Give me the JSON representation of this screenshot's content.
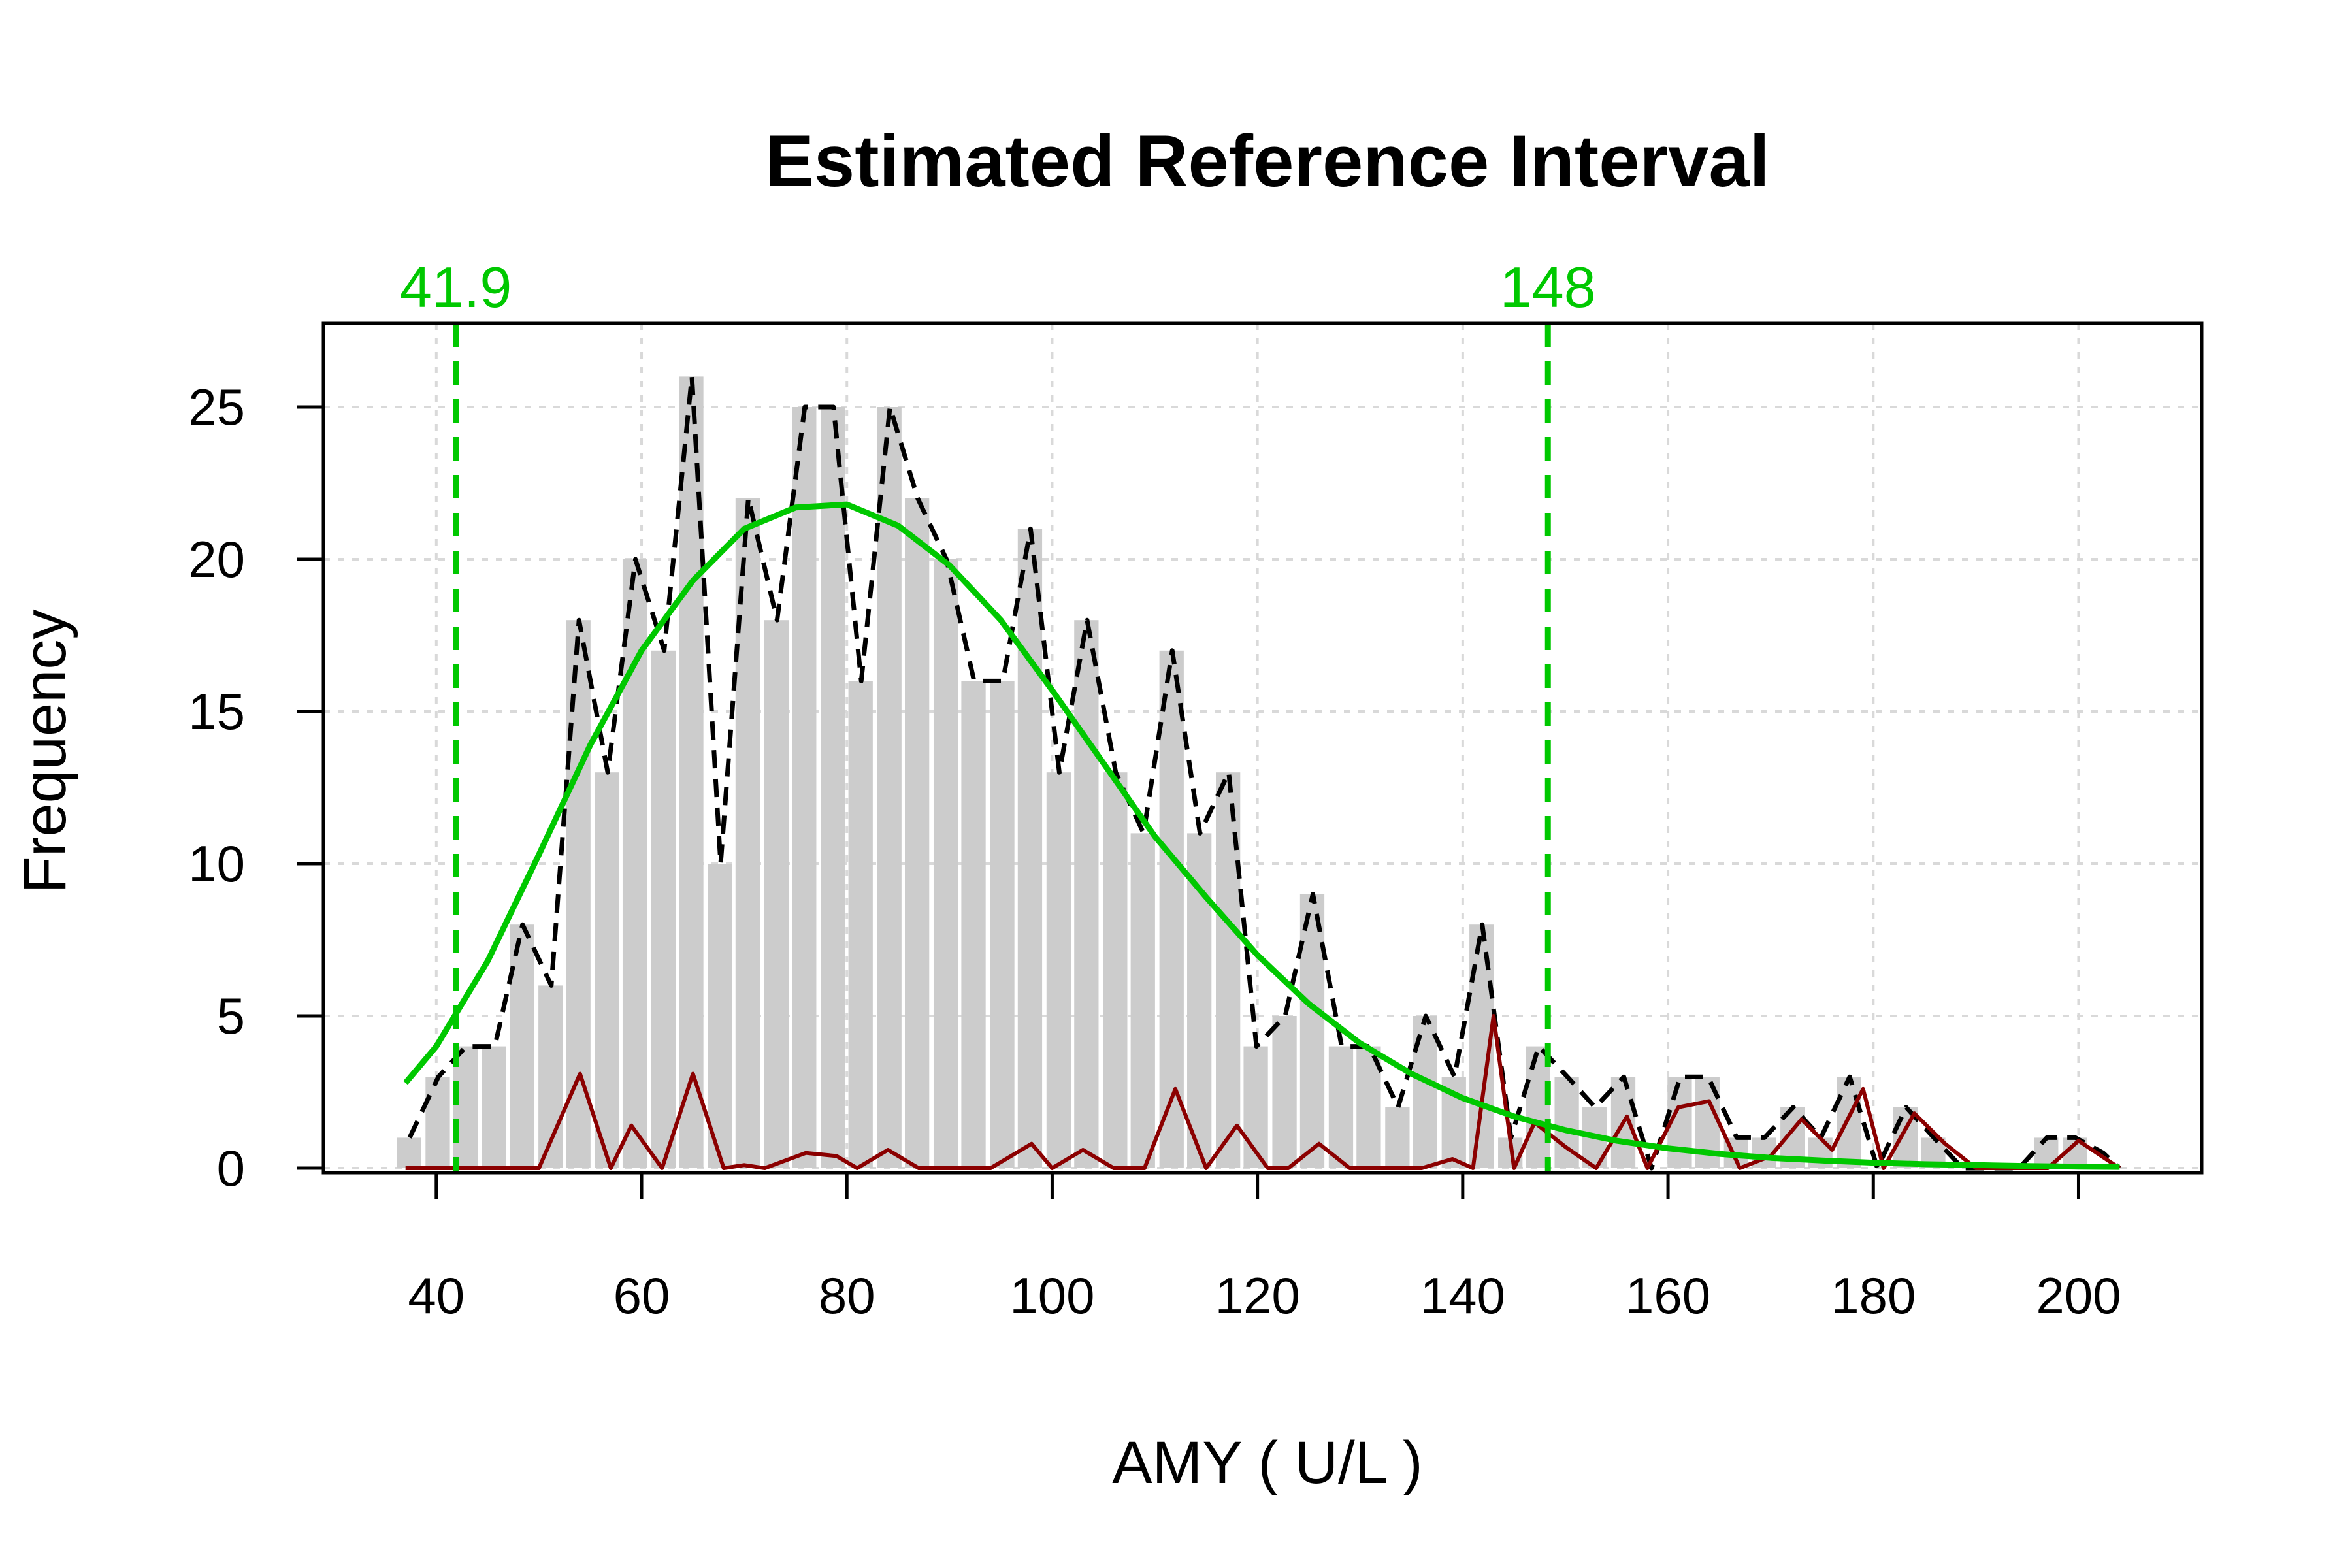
{
  "chart_data": {
    "type": "bar",
    "title": "Estimated Reference Interval",
    "xlabel": "AMY ( U/L )",
    "ylabel": "Frequency",
    "xlim": [
      29,
      212
    ],
    "ylim": [
      0,
      27.5
    ],
    "x_ticks": [
      40,
      60,
      80,
      100,
      120,
      140,
      160,
      180,
      200
    ],
    "y_ticks": [
      0,
      5,
      10,
      15,
      20,
      25
    ],
    "grid": true,
    "bin_width": 2.5,
    "bars": {
      "x": [
        37.4,
        40.2,
        42.9,
        45.7,
        48.4,
        51.2,
        53.9,
        56.7,
        59.4,
        62.2,
        64.9,
        67.7,
        70.4,
        73.2,
        75.9,
        78.7,
        81.4,
        84.2,
        86.9,
        89.7,
        92.4,
        95.2,
        97.9,
        100.7,
        103.4,
        106.2,
        108.9,
        111.7,
        114.4,
        117.2,
        119.9,
        122.7,
        125.4,
        128.2,
        130.9,
        133.7,
        136.4,
        139.2,
        141.9,
        144.7,
        147.4,
        150.2,
        152.9,
        155.7,
        158.4,
        161.2,
        163.9,
        166.7,
        169.4,
        172.2,
        174.9,
        177.7,
        180.4,
        183.2,
        185.9,
        188.7,
        191.4,
        194.2,
        196.9,
        199.7,
        202.4
      ],
      "values": [
        1,
        3,
        4,
        4,
        8,
        6,
        18,
        13,
        20,
        17,
        26,
        10,
        22,
        18,
        25,
        25,
        16,
        25,
        22,
        20,
        16,
        16,
        21,
        13,
        18,
        13,
        11,
        17,
        11,
        13,
        4,
        5,
        9,
        4,
        4,
        2,
        5,
        3,
        8,
        1,
        4,
        3,
        2,
        3,
        0,
        3,
        3,
        1,
        1,
        2,
        1,
        3,
        0,
        2,
        1,
        0,
        0,
        0,
        1,
        1,
        0
      ]
    },
    "series": [
      {
        "style": "black-dashed",
        "x": [
          37.4,
          40.2,
          42.9,
          45.7,
          48.4,
          51.2,
          53.9,
          56.7,
          59.4,
          62.2,
          64.9,
          67.7,
          70.4,
          73.2,
          75.9,
          78.7,
          81.4,
          84.2,
          86.9,
          89.7,
          92.4,
          95.2,
          97.9,
          100.7,
          103.4,
          106.2,
          108.9,
          111.7,
          114.4,
          117.2,
          119.9,
          122.7,
          125.4,
          128.2,
          130.9,
          133.7,
          136.4,
          139.2,
          141.9,
          144.7,
          147.4,
          150.2,
          152.9,
          155.7,
          158.4,
          161.2,
          163.9,
          166.7,
          169.4,
          172.2,
          174.9,
          177.7,
          180.4,
          183.2,
          185.9,
          188.7,
          191.4,
          194.2,
          196.9,
          199.7,
          202.4,
          204.0
        ],
        "values": [
          1,
          3,
          4,
          4,
          8,
          6,
          18,
          13,
          20,
          17,
          26,
          10,
          22,
          18,
          25,
          25,
          16,
          25,
          22,
          20,
          16,
          16,
          21,
          13,
          18,
          13,
          11,
          17,
          11,
          13,
          4,
          5,
          9,
          4,
          4,
          2,
          5,
          3,
          8,
          1,
          4,
          3,
          2,
          3,
          0,
          3,
          3,
          1,
          1,
          2,
          1,
          3,
          0,
          2,
          1,
          0,
          0,
          0,
          1,
          1,
          0.5,
          0
        ]
      },
      {
        "style": "darkred-solid",
        "x": [
          37,
          42,
          46,
          50,
          54,
          57,
          59,
          62,
          65,
          68,
          70,
          72,
          76,
          79,
          81,
          84,
          87,
          90,
          94,
          98,
          100,
          103,
          106,
          109,
          112,
          115,
          118,
          121,
          123,
          126,
          129,
          133,
          136,
          139,
          141,
          143,
          145,
          147,
          150,
          153,
          156,
          158,
          161,
          164,
          167,
          170,
          173,
          176,
          179,
          181,
          184,
          187,
          190,
          193,
          197,
          200,
          204
        ],
        "values": [
          0,
          0,
          0,
          0,
          3.1,
          0,
          1.4,
          0,
          3.1,
          0,
          0.1,
          0,
          0.5,
          0.4,
          0,
          0.6,
          0,
          0,
          0,
          0.8,
          0,
          0.6,
          0,
          0,
          2.6,
          0,
          1.4,
          0,
          0,
          0.8,
          0,
          0,
          0,
          0.3,
          0,
          5,
          0,
          1.5,
          0.7,
          0,
          1.7,
          0,
          2,
          2.2,
          0,
          0.4,
          1.6,
          0.6,
          2.6,
          0,
          1.8,
          0.8,
          0,
          0,
          0,
          0.9,
          0
        ]
      },
      {
        "style": "green-fitted-curve",
        "x": [
          37,
          40,
          45,
          50,
          55,
          60,
          65,
          70,
          75,
          80,
          85,
          90,
          95,
          100,
          105,
          110,
          115,
          120,
          125,
          130,
          135,
          140,
          145,
          150,
          155,
          160,
          165,
          170,
          175,
          180,
          185,
          190,
          195,
          200,
          204
        ],
        "values": [
          2.8,
          4.0,
          6.8,
          10.3,
          13.9,
          17.0,
          19.3,
          21.0,
          21.7,
          21.8,
          21.1,
          19.8,
          18.0,
          15.7,
          13.3,
          10.9,
          8.9,
          7.0,
          5.4,
          4.1,
          3.1,
          2.3,
          1.7,
          1.25,
          0.9,
          0.65,
          0.47,
          0.34,
          0.25,
          0.18,
          0.13,
          0.1,
          0.07,
          0.05,
          0.04
        ]
      }
    ],
    "reference_limits": [
      {
        "value": 41.9,
        "label": "41.9"
      },
      {
        "value": 148.3,
        "label": "148"
      }
    ],
    "colors": {
      "bar": "#cccccc",
      "density_dashed": "#000000",
      "subgroup_line": "#8b0000",
      "fitted_curve": "#00c800",
      "reference_lines": "#00c800",
      "grid": "#d9d9d9",
      "axis": "#000000",
      "background": "#ffffff"
    }
  }
}
